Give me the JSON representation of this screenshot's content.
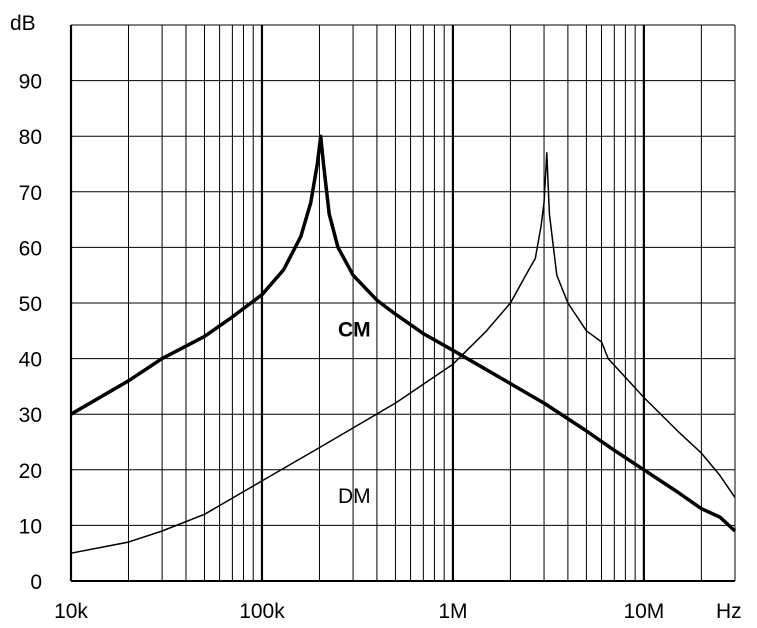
{
  "chart_data": {
    "type": "line",
    "x_scale": "log",
    "y_unit": "dB",
    "x_unit": "Hz",
    "xlim": [
      10000,
      30000000
    ],
    "ylim": [
      0,
      100
    ],
    "grid": true,
    "y_ticks": [
      "0",
      "10",
      "20",
      "30",
      "40",
      "50",
      "60",
      "70",
      "80",
      "90"
    ],
    "y_tick_values": [
      0,
      10,
      20,
      30,
      40,
      50,
      60,
      70,
      80,
      90
    ],
    "x_ticks": [
      "10k",
      "100k",
      "1M",
      "10M"
    ],
    "x_tick_values": [
      10000,
      100000,
      1000000,
      10000000
    ],
    "series": [
      {
        "name": "CM",
        "color": "#000000",
        "bold": true,
        "points": [
          [
            10000,
            30
          ],
          [
            20000,
            36
          ],
          [
            30000,
            40
          ],
          [
            50000,
            44
          ],
          [
            70000,
            47.5
          ],
          [
            100000,
            51.5
          ],
          [
            130000,
            56
          ],
          [
            160000,
            62
          ],
          [
            180000,
            68
          ],
          [
            195000,
            75
          ],
          [
            203000,
            80
          ],
          [
            210000,
            75
          ],
          [
            225000,
            66
          ],
          [
            250000,
            60
          ],
          [
            300000,
            55
          ],
          [
            400000,
            50.5
          ],
          [
            500000,
            48
          ],
          [
            700000,
            44.5
          ],
          [
            1000000,
            41.5
          ],
          [
            2000000,
            35.5
          ],
          [
            3000000,
            32
          ],
          [
            5000000,
            27
          ],
          [
            7000000,
            23.5
          ],
          [
            10000000,
            20
          ],
          [
            15000000,
            16
          ],
          [
            20000000,
            13
          ],
          [
            25000000,
            11.5
          ],
          [
            30000000,
            9
          ]
        ]
      },
      {
        "name": "DM",
        "color": "#000000",
        "bold": false,
        "points": [
          [
            10000,
            5
          ],
          [
            20000,
            7
          ],
          [
            30000,
            9
          ],
          [
            50000,
            12
          ],
          [
            100000,
            18
          ],
          [
            200000,
            24
          ],
          [
            500000,
            32
          ],
          [
            1000000,
            39
          ],
          [
            1500000,
            45
          ],
          [
            2000000,
            50
          ],
          [
            2500000,
            56
          ],
          [
            2700000,
            58
          ],
          [
            2900000,
            64
          ],
          [
            3000000,
            68
          ],
          [
            3100000,
            77
          ],
          [
            3200000,
            66
          ],
          [
            3500000,
            55
          ],
          [
            4000000,
            50
          ],
          [
            5000000,
            45
          ],
          [
            6000000,
            43
          ],
          [
            6500000,
            40
          ],
          [
            10000000,
            33
          ],
          [
            15000000,
            27
          ],
          [
            20000000,
            23
          ],
          [
            25000000,
            19
          ],
          [
            30000000,
            15
          ]
        ]
      }
    ],
    "series_label_positions": {
      "CM": [
        250000,
        44
      ],
      "DM": [
        250000,
        14
      ]
    }
  }
}
